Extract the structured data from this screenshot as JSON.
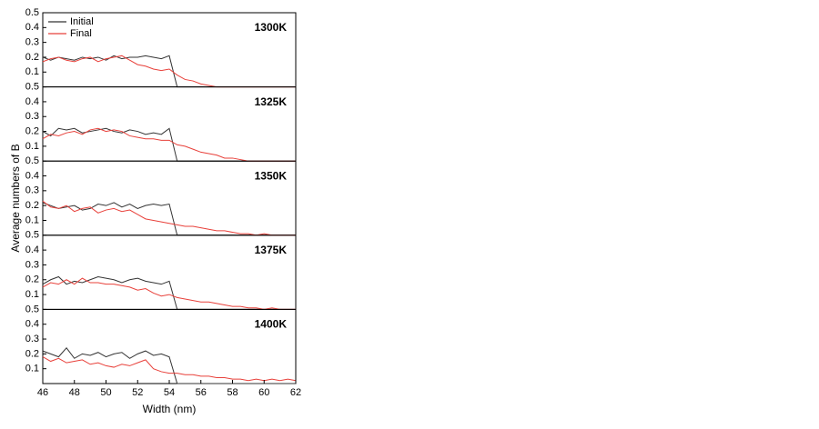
{
  "chart_data": [
    {
      "type": "line",
      "annotation": "1300K",
      "x": [
        46,
        46.5,
        47,
        47.5,
        48,
        48.5,
        49,
        49.5,
        50,
        50.5,
        51,
        51.5,
        52,
        52.5,
        53,
        53.5,
        54,
        54.5,
        55,
        55.5,
        56,
        56.5,
        57,
        57.5,
        58,
        58.5,
        59,
        59.5,
        60,
        60.5,
        61,
        61.5,
        62
      ],
      "xlim": [
        46,
        62
      ],
      "ylim": [
        0,
        0.5
      ],
      "yticks": [
        0.1,
        0.2,
        0.3,
        0.4,
        0.5
      ],
      "legend": "upper left",
      "series": [
        {
          "name": "Initial",
          "color": "#333333",
          "values": [
            0.2,
            0.18,
            0.2,
            0.19,
            0.18,
            0.2,
            0.19,
            0.2,
            0.18,
            0.21,
            0.19,
            0.2,
            0.2,
            0.21,
            0.2,
            0.19,
            0.21,
            0,
            0,
            0,
            0,
            0,
            0,
            0,
            0,
            0,
            0,
            0,
            0,
            0,
            0,
            0,
            0
          ]
        },
        {
          "name": "Final",
          "color": "#e8403a",
          "values": [
            0.17,
            0.19,
            0.2,
            0.18,
            0.17,
            0.19,
            0.2,
            0.17,
            0.19,
            0.2,
            0.21,
            0.18,
            0.15,
            0.14,
            0.12,
            0.11,
            0.12,
            0.08,
            0.05,
            0.04,
            0.02,
            0.01,
            0,
            0,
            0,
            0,
            0,
            0,
            0,
            0,
            0,
            0,
            0
          ]
        }
      ]
    },
    {
      "type": "line",
      "annotation": "1325K",
      "x": [
        46,
        46.5,
        47,
        47.5,
        48,
        48.5,
        49,
        49.5,
        50,
        50.5,
        51,
        51.5,
        52,
        52.5,
        53,
        53.5,
        54,
        54.5,
        55,
        55.5,
        56,
        56.5,
        57,
        57.5,
        58,
        58.5,
        59,
        59.5,
        60,
        60.5,
        61,
        61.5,
        62
      ],
      "xlim": [
        46,
        62
      ],
      "ylim": [
        0,
        0.5
      ],
      "yticks": [
        0.1,
        0.2,
        0.3,
        0.4,
        0.5
      ],
      "series": [
        {
          "color": "#333333",
          "values": [
            0.2,
            0.17,
            0.22,
            0.21,
            0.22,
            0.19,
            0.2,
            0.21,
            0.22,
            0.2,
            0.19,
            0.21,
            0.2,
            0.18,
            0.19,
            0.18,
            0.22,
            0,
            0,
            0,
            0,
            0,
            0,
            0,
            0,
            0,
            0,
            0,
            0,
            0,
            0,
            0,
            0
          ]
        },
        {
          "color": "#e8403a",
          "values": [
            0.15,
            0.18,
            0.17,
            0.19,
            0.2,
            0.18,
            0.21,
            0.22,
            0.2,
            0.21,
            0.2,
            0.17,
            0.16,
            0.15,
            0.15,
            0.14,
            0.14,
            0.11,
            0.1,
            0.08,
            0.06,
            0.05,
            0.04,
            0.02,
            0.02,
            0.01,
            0,
            0,
            0,
            0,
            0,
            0,
            0
          ]
        }
      ]
    },
    {
      "type": "line",
      "annotation": "1350K",
      "ylabel": "Average numbers of B",
      "x": [
        46,
        46.5,
        47,
        47.5,
        48,
        48.5,
        49,
        49.5,
        50,
        50.5,
        51,
        51.5,
        52,
        52.5,
        53,
        53.5,
        54,
        54.5,
        55,
        55.5,
        56,
        56.5,
        57,
        57.5,
        58,
        58.5,
        59,
        59.5,
        60,
        60.5,
        61,
        61.5,
        62
      ],
      "xlim": [
        46,
        62
      ],
      "ylim": [
        0,
        0.5
      ],
      "yticks": [
        0.1,
        0.2,
        0.3,
        0.4,
        0.5
      ],
      "series": [
        {
          "color": "#333333",
          "values": [
            0.22,
            0.2,
            0.18,
            0.19,
            0.2,
            0.17,
            0.18,
            0.21,
            0.2,
            0.22,
            0.19,
            0.21,
            0.18,
            0.2,
            0.21,
            0.2,
            0.21,
            0,
            0,
            0,
            0,
            0,
            0,
            0,
            0,
            0,
            0,
            0,
            0,
            0,
            0,
            0,
            0
          ]
        },
        {
          "color": "#e8403a",
          "values": [
            0.23,
            0.19,
            0.18,
            0.2,
            0.16,
            0.18,
            0.19,
            0.15,
            0.17,
            0.18,
            0.16,
            0.17,
            0.14,
            0.11,
            0.1,
            0.09,
            0.08,
            0.07,
            0.06,
            0.06,
            0.05,
            0.04,
            0.03,
            0.03,
            0.02,
            0.01,
            0.01,
            0,
            0.01,
            0,
            0,
            0,
            0
          ]
        }
      ]
    },
    {
      "type": "line",
      "annotation": "1375K",
      "x": [
        46,
        46.5,
        47,
        47.5,
        48,
        48.5,
        49,
        49.5,
        50,
        50.5,
        51,
        51.5,
        52,
        52.5,
        53,
        53.5,
        54,
        54.5,
        55,
        55.5,
        56,
        56.5,
        57,
        57.5,
        58,
        58.5,
        59,
        59.5,
        60,
        60.5,
        61,
        61.5,
        62
      ],
      "xlim": [
        46,
        62
      ],
      "ylim": [
        0,
        0.5
      ],
      "yticks": [
        0.1,
        0.2,
        0.3,
        0.4,
        0.5
      ],
      "series": [
        {
          "color": "#333333",
          "values": [
            0.17,
            0.2,
            0.22,
            0.17,
            0.19,
            0.18,
            0.2,
            0.22,
            0.21,
            0.2,
            0.18,
            0.2,
            0.21,
            0.19,
            0.18,
            0.17,
            0.19,
            0,
            0,
            0,
            0,
            0,
            0,
            0,
            0,
            0,
            0,
            0,
            0,
            0,
            0,
            0,
            0
          ]
        },
        {
          "color": "#e8403a",
          "values": [
            0.15,
            0.18,
            0.17,
            0.2,
            0.17,
            0.21,
            0.18,
            0.18,
            0.17,
            0.17,
            0.16,
            0.15,
            0.13,
            0.14,
            0.11,
            0.09,
            0.1,
            0.08,
            0.07,
            0.06,
            0.05,
            0.05,
            0.04,
            0.03,
            0.02,
            0.02,
            0.01,
            0.01,
            0,
            0.01,
            0,
            0,
            0
          ]
        }
      ]
    },
    {
      "type": "line",
      "annotation": "1400K",
      "xlabel": "Width (nm)",
      "x": [
        46,
        46.5,
        47,
        47.5,
        48,
        48.5,
        49,
        49.5,
        50,
        50.5,
        51,
        51.5,
        52,
        52.5,
        53,
        53.5,
        54,
        54.5,
        55,
        55.5,
        56,
        56.5,
        57,
        57.5,
        58,
        58.5,
        59,
        59.5,
        60,
        60.5,
        61,
        61.5,
        62
      ],
      "xlim": [
        46,
        62
      ],
      "xticks": [
        46,
        48,
        50,
        52,
        54,
        56,
        58,
        60,
        62
      ],
      "ylim": [
        0,
        0.5
      ],
      "yticks": [
        0.1,
        0.2,
        0.3,
        0.4,
        0.5
      ],
      "series": [
        {
          "color": "#333333",
          "values": [
            0.22,
            0.2,
            0.18,
            0.24,
            0.17,
            0.2,
            0.19,
            0.21,
            0.18,
            0.2,
            0.21,
            0.17,
            0.2,
            0.22,
            0.19,
            0.2,
            0.18,
            0,
            0,
            0,
            0,
            0,
            0,
            0,
            0,
            0,
            0,
            0,
            0,
            0,
            0,
            0,
            0
          ]
        },
        {
          "color": "#e8403a",
          "values": [
            0.18,
            0.15,
            0.17,
            0.14,
            0.15,
            0.16,
            0.13,
            0.14,
            0.12,
            0.11,
            0.13,
            0.12,
            0.14,
            0.16,
            0.1,
            0.08,
            0.07,
            0.07,
            0.06,
            0.06,
            0.05,
            0.05,
            0.04,
            0.04,
            0.03,
            0.03,
            0.02,
            0.03,
            0.02,
            0.03,
            0.02,
            0.03,
            0.02
          ]
        }
      ]
    }
  ]
}
